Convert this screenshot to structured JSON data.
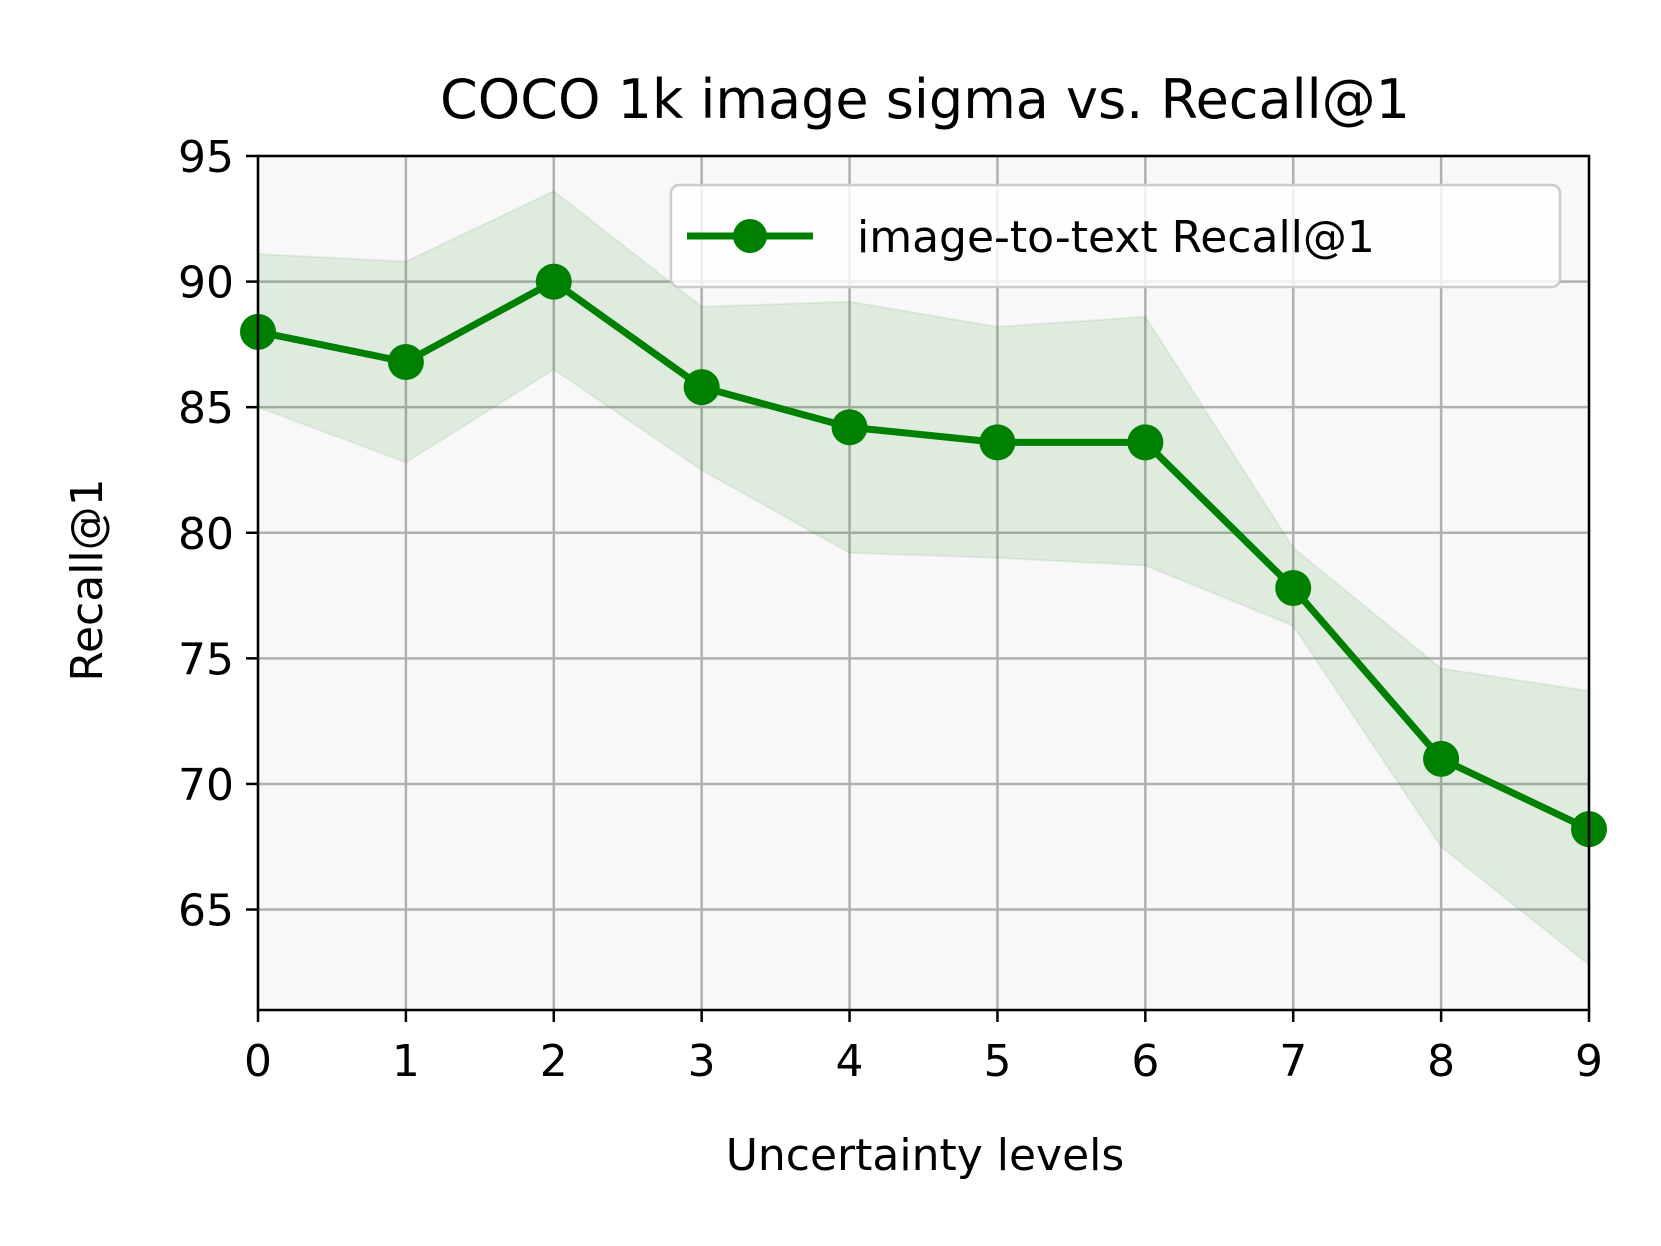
{
  "chart_data": {
    "type": "line",
    "title": "COCO 1k image sigma vs. Recall@1",
    "xlabel": "Uncertainty levels",
    "ylabel": "Recall@1",
    "xlim": [
      0,
      9
    ],
    "ylim": [
      61,
      95
    ],
    "xticks": [
      "0",
      "1",
      "2",
      "3",
      "4",
      "5",
      "6",
      "7",
      "8",
      "9"
    ],
    "yticks": [
      "65",
      "70",
      "75",
      "80",
      "85",
      "90",
      "95"
    ],
    "grid": true,
    "legend_position": "top-right",
    "x": [
      0,
      1,
      2,
      3,
      4,
      5,
      6,
      7,
      8,
      9
    ],
    "series": [
      {
        "name": "image-to-text Recall@1",
        "values": [
          88.0,
          86.8,
          90.0,
          85.8,
          84.2,
          83.6,
          83.6,
          77.8,
          71.0,
          68.2
        ],
        "band_upper": [
          91.1,
          90.8,
          93.6,
          89.0,
          89.2,
          88.2,
          88.6,
          79.4,
          74.6,
          73.7
        ],
        "band_lower": [
          85.0,
          82.8,
          86.5,
          82.5,
          79.2,
          79.0,
          78.7,
          76.3,
          67.5,
          62.8
        ],
        "color": "#008000",
        "band_color": "#008000"
      }
    ],
    "plot_background": "#f8f8f8"
  }
}
